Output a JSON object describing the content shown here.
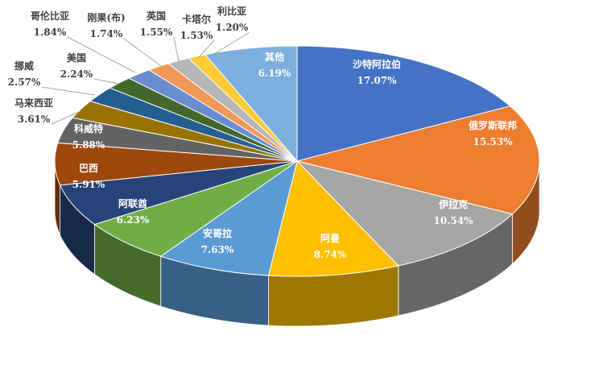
{
  "chart_data": {
    "type": "pie",
    "title": "",
    "style": "3d",
    "slices": [
      {
        "label": "沙特阿拉伯",
        "value": 17.07,
        "text": "17.07%",
        "color": "#4472C4"
      },
      {
        "label": "俄罗斯联邦",
        "value": 15.53,
        "text": "15.53%",
        "color": "#ED7D31"
      },
      {
        "label": "伊拉克",
        "value": 10.54,
        "text": "10.54%",
        "color": "#A5A5A5"
      },
      {
        "label": "阿曼",
        "value": 8.74,
        "text": "8.74%",
        "color": "#FFC000"
      },
      {
        "label": "安哥拉",
        "value": 7.63,
        "text": "7.63%",
        "color": "#5B9BD5"
      },
      {
        "label": "阿联酋",
        "value": 6.23,
        "text": "6.23%",
        "color": "#70AD47"
      },
      {
        "label": "巴西",
        "value": 5.91,
        "text": "5.91%",
        "color": "#264478"
      },
      {
        "label": "科威特",
        "value": 5.88,
        "text": "5.88%",
        "color": "#9E480E"
      },
      {
        "label": "马来西亚",
        "value": 3.61,
        "text": "3.61%",
        "color": "#636363"
      },
      {
        "label": "挪威",
        "value": 2.57,
        "text": "2.57%",
        "color": "#997300"
      },
      {
        "label": "美国",
        "value": 2.24,
        "text": "2.24%",
        "color": "#255E91"
      },
      {
        "label": "哥伦比亚",
        "value": 1.84,
        "text": "1.84%",
        "color": "#43682B"
      },
      {
        "label": "刚果(布)",
        "value": 1.74,
        "text": "1.74%",
        "color": "#698ED0"
      },
      {
        "label": "英国",
        "value": 1.55,
        "text": "1.55%",
        "color": "#F1975A"
      },
      {
        "label": "卡塔尔",
        "value": 1.53,
        "text": "1.53%",
        "color": "#B7B7B7"
      },
      {
        "label": "利比亚",
        "value": 1.2,
        "text": "1.20%",
        "color": "#FFCD33"
      },
      {
        "label": "其他",
        "value": 6.19,
        "text": "6.19%",
        "color": "#7CAFDD"
      }
    ]
  }
}
